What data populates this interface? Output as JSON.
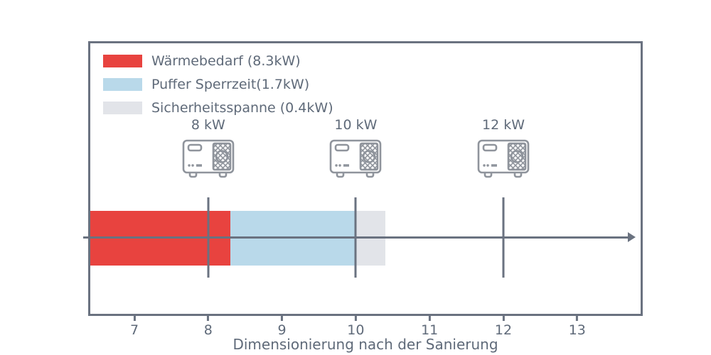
{
  "chart_data": {
    "type": "bar",
    "orientation": "horizontal",
    "stacked": true,
    "title": "",
    "xlabel": "Dimensionierung nach der Sanierung",
    "ylabel": "",
    "xlim": [
      6.37,
      13.9
    ],
    "x_ticks": [
      7,
      8,
      9,
      10,
      11,
      12,
      13
    ],
    "grid": false,
    "legend_position": "upper-left-inside",
    "series": [
      {
        "name": "Wärmebedarf (8.3kW)",
        "value_kw": 8.3,
        "span": [
          6.37,
          8.3
        ],
        "color": "#e8433f"
      },
      {
        "name": "Puffer Sperrzeit(1.7kW)",
        "value_kw": 1.7,
        "span": [
          8.3,
          10.0
        ],
        "color": "#b9d9ea"
      },
      {
        "name": "Sicherheitsspanne (0.4kW)",
        "value_kw": 0.4,
        "span": [
          10.0,
          10.4
        ],
        "color": "#e2e4e9"
      }
    ],
    "markers": [
      {
        "label": "8 kW",
        "x": 8,
        "icon": "heat-pump-icon"
      },
      {
        "label": "10 kW",
        "x": 10,
        "icon": "heat-pump-icon"
      },
      {
        "label": "12 kW",
        "x": 12,
        "icon": "heat-pump-icon"
      }
    ],
    "axis_arrow": {
      "from": 6.31,
      "to": 13.79
    }
  },
  "colors": {
    "axis": "#6a7280",
    "text": "#5f6a79",
    "icon_stroke": "#8f949c",
    "background": "#ffffff"
  }
}
